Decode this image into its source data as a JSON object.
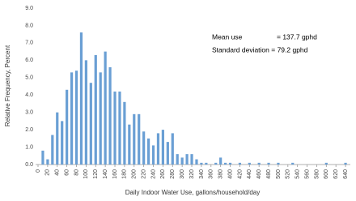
{
  "chart_data": {
    "type": "bar",
    "x_label": "Daily Indoor Water Use, gallons/household/day",
    "y_label": "Relative Frequency, Percent",
    "annotations": [
      "Mean use",
      "= 137.7 gphd",
      "Standard deviation = 79.2 gphd"
    ],
    "x": [
      10,
      20,
      30,
      40,
      50,
      60,
      70,
      80,
      90,
      100,
      110,
      120,
      130,
      140,
      150,
      160,
      170,
      180,
      190,
      200,
      210,
      220,
      230,
      240,
      250,
      260,
      270,
      280,
      290,
      300,
      310,
      320,
      330,
      340,
      350,
      360,
      370,
      380,
      390,
      400,
      410,
      420,
      430,
      440,
      450,
      460,
      470,
      480,
      490,
      500,
      510,
      520,
      530,
      540,
      550,
      560,
      570,
      580,
      590,
      600,
      610,
      620,
      630,
      640
    ],
    "values": [
      0.8,
      0.3,
      1.7,
      3.0,
      2.5,
      4.3,
      5.3,
      5.4,
      7.6,
      6.0,
      4.7,
      6.3,
      5.3,
      6.5,
      5.6,
      4.2,
      4.2,
      3.6,
      2.3,
      2.9,
      2.9,
      1.9,
      1.5,
      1.1,
      1.8,
      2.0,
      1.3,
      1.8,
      0.6,
      0.4,
      0.6,
      0.6,
      0.3,
      0.1,
      0.1,
      0,
      0.1,
      0.4,
      0.1,
      0.1,
      0,
      0.1,
      0,
      0.1,
      0,
      0.1,
      0,
      0.1,
      0,
      0.1,
      0,
      0,
      0.1,
      0,
      0,
      0,
      0,
      0,
      0,
      0.1,
      0,
      0,
      0,
      0.1
    ],
    "color": "#6a9fd4",
    "xlim": [
      0,
      650
    ],
    "xticks": [
      0,
      20,
      40,
      60,
      80,
      100,
      120,
      140,
      160,
      180,
      200,
      220,
      240,
      260,
      280,
      300,
      320,
      340,
      360,
      380,
      400,
      420,
      440,
      460,
      480,
      500,
      520,
      540,
      560,
      580,
      600,
      620,
      640
    ],
    "ylim": [
      0,
      9
    ],
    "yticks": [
      {
        "value": 0,
        "label": "0.0"
      },
      {
        "value": 1,
        "label": "1.0"
      },
      {
        "value": 2,
        "label": "2.0"
      },
      {
        "value": 3,
        "label": "3.0"
      },
      {
        "value": 4,
        "label": "4.0"
      },
      {
        "value": 5,
        "label": "5.0"
      },
      {
        "value": 6,
        "label": "6.0"
      },
      {
        "value": 7,
        "label": "7.0"
      },
      {
        "value": 8,
        "label": "8.0"
      },
      {
        "value": 9,
        "label": "9.0"
      }
    ],
    "grid": false
  }
}
